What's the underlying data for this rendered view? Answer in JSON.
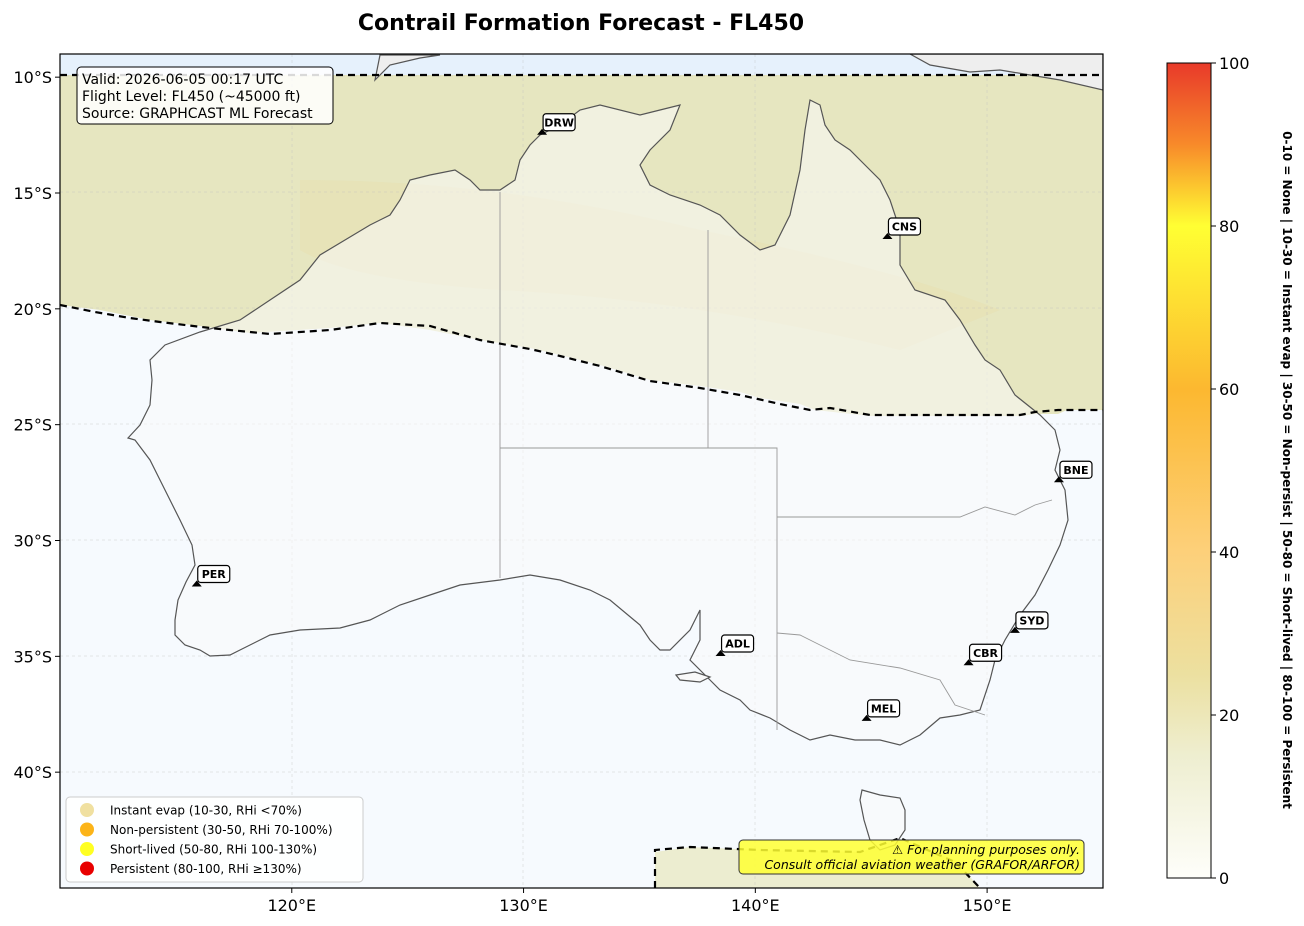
{
  "title": "Contrail Formation Forecast - FL450",
  "map": {
    "lon_range": [
      110,
      155
    ],
    "lat_range": [
      -45,
      -9
    ]
  },
  "axes": {
    "x_ticks": [
      "120°E",
      "130°E",
      "140°E",
      "150°E"
    ],
    "x_values": [
      120,
      130,
      140,
      150
    ],
    "y_ticks": [
      "10°S",
      "15°S",
      "20°S",
      "25°S",
      "30°S",
      "35°S",
      "40°S"
    ],
    "y_values": [
      -10,
      -15,
      -20,
      -25,
      -30,
      -35,
      -40
    ]
  },
  "info_box": {
    "valid": "Valid: 2026-06-05 00:17 UTC",
    "flight_level": "Flight Level: FL450 (~45000 ft)",
    "source": "Source: GRAPHCAST ML Forecast"
  },
  "airports": [
    {
      "code": "DRW",
      "lon": 130.8,
      "lat": -12.4
    },
    {
      "code": "CNS",
      "lon": 145.7,
      "lat": -16.9
    },
    {
      "code": "BNE",
      "lon": 153.1,
      "lat": -27.4
    },
    {
      "code": "PER",
      "lon": 115.9,
      "lat": -31.9
    },
    {
      "code": "ADL",
      "lon": 138.5,
      "lat": -34.9
    },
    {
      "code": "SYD",
      "lon": 151.2,
      "lat": -33.9
    },
    {
      "code": "CBR",
      "lon": 149.2,
      "lat": -35.3
    },
    {
      "code": "MEL",
      "lon": 144.8,
      "lat": -37.7
    }
  ],
  "legend": [
    {
      "label": "Instant evap (10-30, RHi <70%)",
      "color": "#f0e0a0"
    },
    {
      "label": "Non-persistent (30-50, RHi 70-100%)",
      "color": "#fcb418"
    },
    {
      "label": "Short-lived (50-80, RHi 100-130%)",
      "color": "#ffff22"
    },
    {
      "label": "Persistent (80-100, RHi ≥130%)",
      "color": "#e80000"
    }
  ],
  "warning": {
    "line1": "⚠ For planning purposes only.",
    "line2": "Consult official aviation weather (GRAFOR/ARFOR)"
  },
  "colorbar": {
    "min": 0,
    "max": 100,
    "ticks": [
      "0",
      "20",
      "40",
      "60",
      "80",
      "100"
    ],
    "tick_values": [
      0,
      20,
      40,
      60,
      80,
      100
    ],
    "side_label": "0-10 = None  |  10-30 = Instant evap  |  30-50 = Non-persist  |  50-80 = Short-lived  |  80-100 = Persistent",
    "stops": [
      {
        "value": 0,
        "color": "#fefefa"
      },
      {
        "value": 15,
        "color": "#eeeed0"
      },
      {
        "value": 25,
        "color": "#ece0a0"
      },
      {
        "value": 40,
        "color": "#fdd07a"
      },
      {
        "value": 60,
        "color": "#fcb830"
      },
      {
        "value": 80,
        "color": "#ffff33"
      },
      {
        "value": 90,
        "color": "#f88a2a"
      },
      {
        "value": 100,
        "color": "#e83a2a"
      }
    ]
  },
  "field": {
    "tropical_band_value": 22,
    "south_value": 2,
    "tasmania_patch_value": 15
  }
}
